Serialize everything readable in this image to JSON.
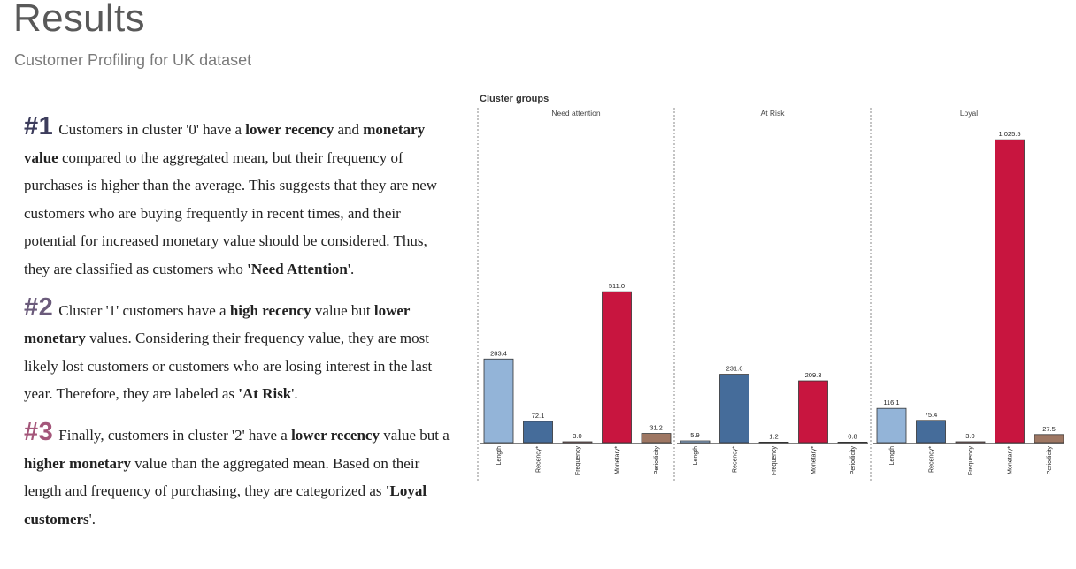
{
  "page": {
    "title": "Results",
    "subtitle": "Customer Profiling for UK dataset"
  },
  "insights": [
    {
      "number": "#1",
      "number_color": "#3d3d5c",
      "segments": [
        {
          "t": "Customers in cluster '0' have a ",
          "b": false
        },
        {
          "t": "lower recency",
          "b": true
        },
        {
          "t": " and ",
          "b": false
        },
        {
          "t": "monetary value",
          "b": true
        },
        {
          "t": " compared to the aggregated mean, but their frequency of purchases is higher than the average. This suggests that they are new customers who are buying frequently in recent times, and their potential for increased monetary value should be considered. Thus, they are classified as customers who ",
          "b": false
        },
        {
          "t": "'Need Attention",
          "b": true
        },
        {
          "t": "'.",
          "b": false
        }
      ]
    },
    {
      "number": "#2",
      "number_color": "#6b5b7b",
      "segments": [
        {
          "t": "Cluster '1' customers have a ",
          "b": false
        },
        {
          "t": "high recency",
          "b": true
        },
        {
          "t": " value but ",
          "b": false
        },
        {
          "t": "lower monetary",
          "b": true
        },
        {
          "t": " values. Considering their frequency value, they are most likely lost customers or customers who are losing interest in the last year. Therefore, they are labeled as ",
          "b": false
        },
        {
          "t": "'At Risk",
          "b": true
        },
        {
          "t": "'.",
          "b": false
        }
      ]
    },
    {
      "number": "#3",
      "number_color": "#a4567a",
      "segments": [
        {
          "t": "Finally, customers in cluster '2' have a ",
          "b": false
        },
        {
          "t": "lower recency",
          "b": true
        },
        {
          "t": " value but a ",
          "b": false
        },
        {
          "t": "higher monetary",
          "b": true
        },
        {
          "t": " value than the aggregated mean. Based on their length and frequency of purchasing, they are categorized as ",
          "b": false
        },
        {
          "t": "'Loyal customers",
          "b": true
        },
        {
          "t": "'.",
          "b": false
        }
      ]
    }
  ],
  "chart_data": {
    "type": "bar",
    "title": "Cluster groups",
    "categories": [
      "Length",
      "Recency*",
      "Frequency",
      "Monetary*",
      "Periodicity"
    ],
    "colors": [
      "#93b4d8",
      "#456c9a",
      "#e8a0a0",
      "#c8153f",
      "#9e7763"
    ],
    "ylim": [
      0,
      1050
    ],
    "grid": false,
    "panels": [
      {
        "name": "Need attention",
        "values": [
          283.4,
          72.1,
          3.0,
          511.0,
          31.2
        ],
        "labels": [
          "283.4",
          "72.1",
          "3.0",
          "511.0",
          "31.2"
        ]
      },
      {
        "name": "At Risk",
        "values": [
          5.9,
          231.6,
          1.2,
          209.3,
          0.8
        ],
        "labels": [
          "5.9",
          "231.6",
          "1.2",
          "209.3",
          "0.8"
        ]
      },
      {
        "name": "Loyal",
        "values": [
          116.1,
          75.4,
          3.0,
          1025.5,
          27.5
        ],
        "labels": [
          "116.1",
          "75.4",
          "3.0",
          "1,025.5",
          "27.5"
        ]
      }
    ]
  }
}
